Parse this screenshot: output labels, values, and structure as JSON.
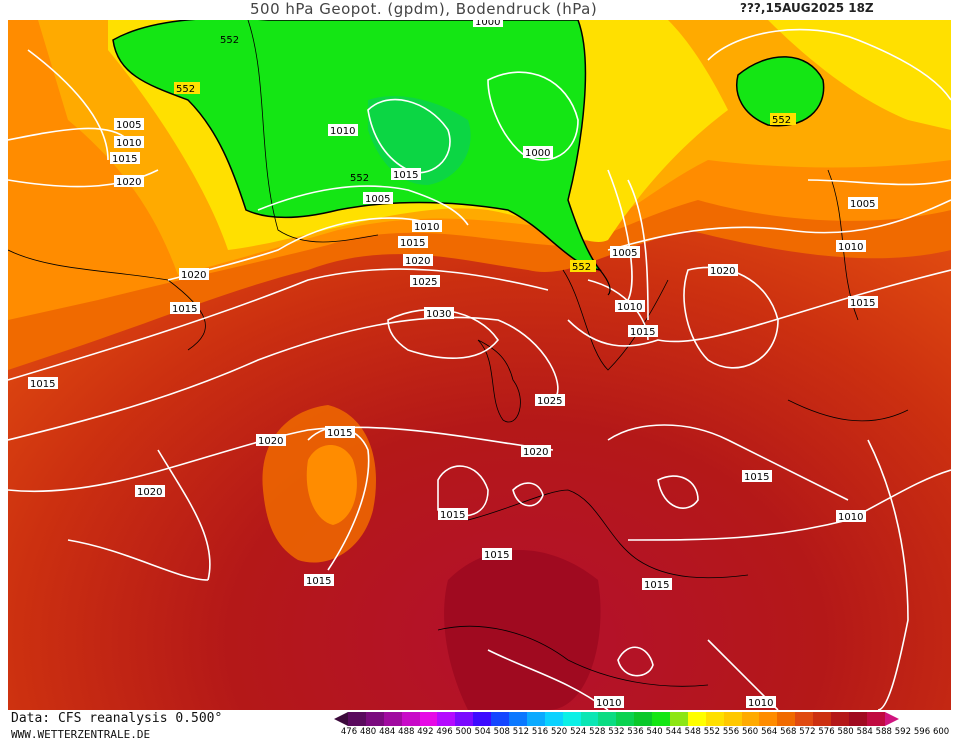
{
  "title": "500 hPa Geopot. (gpdm), Bodendruck (hPa)",
  "run_label": "???,15AUG2025 18Z",
  "credit": {
    "data_source": "Data: CFS reanalysis 0.500°",
    "website": "WWW.WETTERZENTRALE.DE"
  },
  "legend": {
    "ticks": [
      "476",
      "480",
      "484",
      "488",
      "492",
      "496",
      "500",
      "504",
      "508",
      "512",
      "516",
      "520",
      "524",
      "528",
      "532",
      "536",
      "540",
      "544",
      "548",
      "552",
      "556",
      "560",
      "564",
      "568",
      "572",
      "576",
      "580",
      "584",
      "588",
      "592",
      "596",
      "600"
    ],
    "colors": [
      "#3b0a3b",
      "#5a0a5e",
      "#7a0a7e",
      "#a00aa0",
      "#c80ac8",
      "#e60ae6",
      "#b40aff",
      "#7a0aff",
      "#3c0aff",
      "#1446ff",
      "#0a78ff",
      "#0aaaff",
      "#0ad2ff",
      "#0af0e6",
      "#0ae6b4",
      "#0adc82",
      "#0ad250",
      "#0ac82a",
      "#14e614",
      "#8ce614",
      "#ffff00",
      "#ffe000",
      "#ffc800",
      "#ffaa00",
      "#ff8c00",
      "#f06a00",
      "#e04a10",
      "#cc3010",
      "#b41818",
      "#a00a20",
      "#c00a40",
      "#d0147e"
    ]
  },
  "contour_labels": {
    "geopotential": [
      "552",
      "552",
      "552",
      "552",
      "552"
    ],
    "pressure": [
      "1005",
      "1010",
      "1015",
      "1020",
      "1010",
      "1000",
      "1015",
      "1005",
      "1010",
      "1015",
      "1020",
      "1025",
      "1030",
      "1020",
      "1015",
      "1015",
      "1025",
      "1020",
      "1020",
      "1015",
      "1020",
      "1015",
      "1015",
      "1015",
      "1005",
      "1010",
      "1015",
      "1020",
      "1015",
      "1010",
      "1005",
      "1015",
      "1010",
      "1015",
      "1010",
      "1010",
      "1000"
    ]
  }
}
